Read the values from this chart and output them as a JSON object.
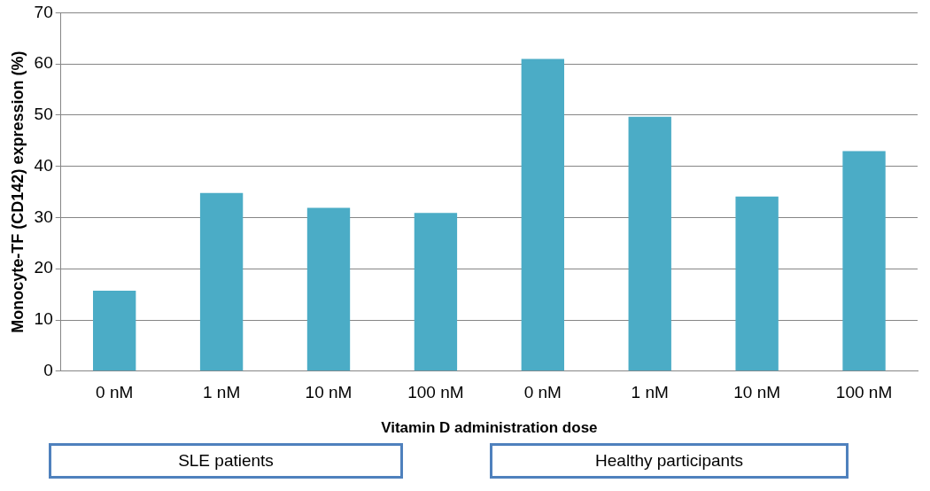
{
  "chart_data": {
    "type": "bar",
    "ylabel": "Monocyte-TF (CD142) expression (%)",
    "xlabel": "Vitamin D administration dose",
    "categories": [
      "0 nM",
      "1 nM",
      "10 nM",
      "100 nM",
      "0 nM",
      "1 nM",
      "10 nM",
      "100 nM"
    ],
    "values": [
      15.7,
      34.8,
      31.9,
      30.9,
      61,
      49.7,
      34.1,
      43
    ],
    "color": "#4bacc6",
    "ylim": [
      0,
      70
    ],
    "yticks": [
      0,
      10,
      20,
      30,
      40,
      50,
      60,
      70
    ],
    "grid": "y",
    "legend": false,
    "annotations": [
      "SLE patients",
      "Healthy participants"
    ]
  }
}
